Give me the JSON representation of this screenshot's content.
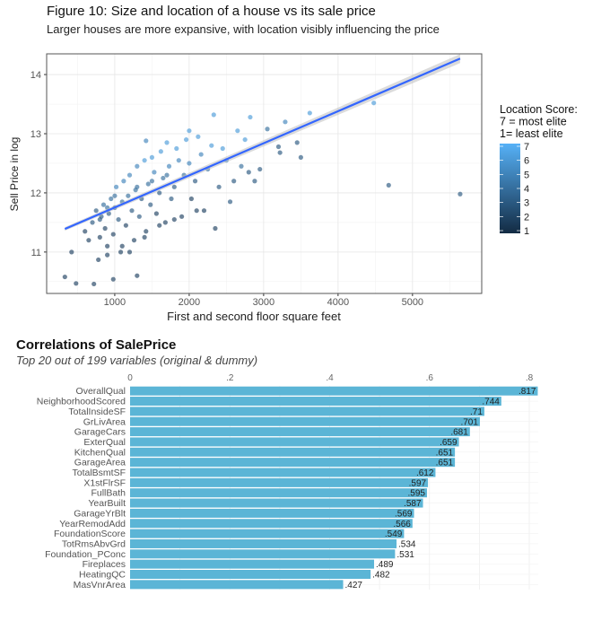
{
  "chart_data": [
    {
      "type": "scatter",
      "title": "Figure 10: Size and location of a house vs its sale price",
      "subtitle": "Larger houses are more expansive, with location visibly influencing the price",
      "xlabel": "First and second floor square feet",
      "ylabel": "Sell Price in log",
      "xlim": [
        85,
        5930
      ],
      "ylim": [
        10.3,
        14.35
      ],
      "xticks": [
        1000,
        2000,
        3000,
        4000,
        5000
      ],
      "yticks": [
        11,
        12,
        13,
        14
      ],
      "grid": true,
      "legend": {
        "title_lines": [
          "Location Score:",
          "7 = most elite",
          "1= least elite"
        ],
        "ticks": [
          1,
          2,
          3,
          4,
          5,
          6,
          7
        ],
        "placement": "right",
        "color_low": "#132B43",
        "color_high": "#56B1F7"
      },
      "trend_line": {
        "color": "#3366FF",
        "x": [
          330,
          5640
        ],
        "y": [
          11.39,
          14.27
        ],
        "ci_color": "#BEBEBE"
      },
      "points_note_columns": [
        "x",
        "y",
        "location_score"
      ],
      "points": [
        [
          4680,
          12.13,
          3
        ],
        [
          5640,
          11.98,
          3
        ],
        [
          4480,
          13.52,
          6
        ],
        [
          330,
          10.58,
          2
        ],
        [
          480,
          10.47,
          2
        ],
        [
          720,
          10.46,
          2
        ],
        [
          980,
          10.54,
          2
        ],
        [
          1300,
          10.6,
          2
        ],
        [
          420,
          11.0,
          2
        ],
        [
          3500,
          12.6,
          3
        ],
        [
          3620,
          13.35,
          6
        ],
        [
          2330,
          13.32,
          6
        ],
        [
          2820,
          13.28,
          6
        ],
        [
          3290,
          13.2,
          5
        ],
        [
          3450,
          12.85,
          3
        ],
        [
          3220,
          12.68,
          3
        ],
        [
          1420,
          12.88,
          5
        ],
        [
          2000,
          13.05,
          6
        ],
        [
          600,
          11.35,
          2
        ],
        [
          650,
          11.2,
          2
        ],
        [
          700,
          11.5,
          3
        ],
        [
          750,
          11.7,
          3
        ],
        [
          780,
          10.87,
          2
        ],
        [
          800,
          11.25,
          2
        ],
        [
          820,
          11.6,
          3
        ],
        [
          850,
          11.8,
          4
        ],
        [
          870,
          11.4,
          2
        ],
        [
          900,
          11.1,
          2
        ],
        [
          920,
          11.65,
          3
        ],
        [
          950,
          11.9,
          4
        ],
        [
          980,
          11.3,
          2
        ],
        [
          1000,
          11.75,
          3
        ],
        [
          1020,
          12.1,
          5
        ],
        [
          1050,
          11.55,
          3
        ],
        [
          1080,
          11.0,
          2
        ],
        [
          1100,
          11.85,
          4
        ],
        [
          1120,
          12.2,
          5
        ],
        [
          1150,
          11.45,
          2
        ],
        [
          1180,
          11.95,
          4
        ],
        [
          1200,
          12.3,
          5
        ],
        [
          1230,
          11.7,
          3
        ],
        [
          1260,
          11.2,
          2
        ],
        [
          1280,
          12.05,
          4
        ],
        [
          1300,
          12.45,
          5
        ],
        [
          1330,
          11.6,
          3
        ],
        [
          1360,
          11.9,
          3
        ],
        [
          1400,
          12.55,
          6
        ],
        [
          1420,
          11.35,
          2
        ],
        [
          1450,
          12.15,
          4
        ],
        [
          1480,
          11.8,
          3
        ],
        [
          1500,
          12.6,
          6
        ],
        [
          1530,
          12.35,
          5
        ],
        [
          1560,
          11.65,
          2
        ],
        [
          1600,
          12.0,
          3
        ],
        [
          1620,
          12.7,
          6
        ],
        [
          1650,
          12.25,
          4
        ],
        [
          1680,
          11.5,
          2
        ],
        [
          1700,
          12.85,
          6
        ],
        [
          1730,
          12.45,
          5
        ],
        [
          1760,
          11.9,
          3
        ],
        [
          1800,
          12.1,
          3
        ],
        [
          1830,
          12.75,
          6
        ],
        [
          1860,
          12.55,
          5
        ],
        [
          1900,
          11.6,
          2
        ],
        [
          1930,
          12.3,
          4
        ],
        [
          1960,
          12.9,
          6
        ],
        [
          2000,
          12.5,
          5
        ],
        [
          2030,
          11.9,
          2
        ],
        [
          2080,
          12.2,
          3
        ],
        [
          2120,
          12.95,
          6
        ],
        [
          2160,
          12.65,
          5
        ],
        [
          2200,
          11.7,
          2
        ],
        [
          2250,
          12.4,
          4
        ],
        [
          2300,
          12.8,
          6
        ],
        [
          2350,
          11.4,
          2
        ],
        [
          2400,
          12.1,
          3
        ],
        [
          2450,
          12.75,
          6
        ],
        [
          2500,
          12.55,
          5
        ],
        [
          2550,
          11.85,
          3
        ],
        [
          2600,
          12.2,
          3
        ],
        [
          2650,
          13.05,
          6
        ],
        [
          2700,
          12.45,
          4
        ],
        [
          2750,
          12.9,
          6
        ],
        [
          2800,
          12.35,
          3
        ],
        [
          2880,
          12.2,
          3
        ],
        [
          2950,
          12.4,
          3
        ],
        [
          3050,
          13.08,
          4
        ],
        [
          3200,
          12.78,
          3
        ],
        [
          1100,
          11.1,
          2
        ],
        [
          900,
          10.95,
          2
        ],
        [
          1200,
          11.0,
          2
        ],
        [
          1400,
          11.25,
          2
        ],
        [
          1600,
          11.45,
          2
        ],
        [
          1800,
          11.55,
          2
        ],
        [
          2100,
          11.7,
          2
        ],
        [
          1300,
          12.1,
          4
        ],
        [
          1500,
          12.2,
          4
        ],
        [
          1700,
          12.3,
          4
        ],
        [
          900,
          11.75,
          4
        ],
        [
          1000,
          11.95,
          4
        ],
        [
          800,
          11.55,
          3
        ]
      ]
    },
    {
      "type": "bar",
      "orientation": "horizontal",
      "title": "Correlations of SalePrice",
      "subtitle": "Top 20 out of 199 variables (original & dummy)",
      "xlim": [
        0,
        0.82
      ],
      "xticks": [
        0,
        0.2,
        0.4,
        0.6,
        0.8
      ],
      "xtick_labels": [
        "0",
        ".2",
        ".4",
        ".6",
        ".8"
      ],
      "grid": true,
      "bar_color": "#5BB5D6",
      "categories": [
        "OverallQual",
        "NeighborhoodScored",
        "TotalInsideSF",
        "GrLivArea",
        "GarageCars",
        "ExterQual",
        "KitchenQual",
        "GarageArea",
        "TotalBsmtSF",
        "X1stFlrSF",
        "FullBath",
        "YearBuilt",
        "GarageYrBlt",
        "YearRemodAdd",
        "FoundationScore",
        "TotRmsAbvGrd",
        "Foundation_PConc",
        "Fireplaces",
        "HeatingQC",
        "MasVnrArea"
      ],
      "values": [
        0.817,
        0.744,
        0.71,
        0.701,
        0.681,
        0.659,
        0.651,
        0.651,
        0.612,
        0.597,
        0.595,
        0.587,
        0.569,
        0.566,
        0.549,
        0.534,
        0.531,
        0.489,
        0.482,
        0.427
      ],
      "data_labels": [
        ".817",
        ".744",
        ".71",
        ".701",
        ".681",
        ".659",
        ".651",
        ".651",
        ".612",
        ".597",
        ".595",
        ".587",
        ".569",
        ".566",
        ".549",
        ".534",
        ".531",
        ".489",
        ".482",
        ".427"
      ]
    }
  ]
}
